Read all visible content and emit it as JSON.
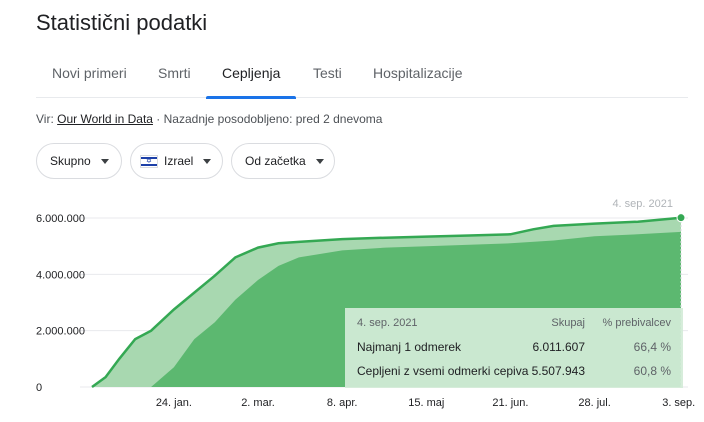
{
  "title": "Statistični podatki",
  "tabs": [
    {
      "label": "Novi primeri"
    },
    {
      "label": "Smrti"
    },
    {
      "label": "Cepljenja"
    },
    {
      "label": "Testi"
    },
    {
      "label": "Hospitalizacije"
    }
  ],
  "active_tab": "Cepljenja",
  "source": {
    "prefix": "Vir:",
    "link": "Our World in Data",
    "separator": "·",
    "updated": "Nazadnje posodobljeno: pred 2 dnevoma"
  },
  "filters": {
    "metric": "Skupno",
    "country": "Izrael",
    "range": "Od začetka"
  },
  "colors": {
    "at_least_one": "#a8d8b0",
    "fully": "#5cb870",
    "line": "#34a853",
    "accent": "#1a73e8"
  },
  "icons": {
    "country_flag": "israel-flag-icon",
    "dropdown": "caret-down-icon"
  },
  "tooltip": {
    "date": "4. sep. 2021",
    "col_total": "Skupaj",
    "col_percent": "% prebivalcev",
    "rows": [
      {
        "label": "Najmanj 1 odmerek",
        "total": "6.011.607",
        "percent": "66,4 %"
      },
      {
        "label": "Cepljeni z vsemi odmerki cepiva",
        "total": "5.507.943",
        "percent": "60,8 %"
      }
    ]
  },
  "chart_data": {
    "type": "area",
    "title": "",
    "xlabel": "",
    "ylabel": "",
    "ylim": [
      0,
      6000000
    ],
    "yticks": [
      0,
      2000000,
      4000000,
      6000000
    ],
    "ytick_labels": [
      "0",
      "2.000.000",
      "4.000.000",
      "6.000.000"
    ],
    "xtick_labels": [
      "24. jan.",
      "2. mar.",
      "8. apr.",
      "15. maj",
      "21. jun.",
      "28. jul.",
      "3. sep."
    ],
    "grid": true,
    "highlight_label": "4. sep. 2021",
    "series": [
      {
        "name": "Najmanj 1 odmerek",
        "x": [
          "2020-12-19",
          "2020-12-25",
          "2020-12-31",
          "2021-01-07",
          "2021-01-14",
          "2021-01-24",
          "2021-02-02",
          "2021-02-11",
          "2021-02-20",
          "2021-03-02",
          "2021-03-11",
          "2021-03-20",
          "2021-04-08",
          "2021-04-27",
          "2021-05-15",
          "2021-06-03",
          "2021-06-21",
          "2021-07-01",
          "2021-07-10",
          "2021-07-28",
          "2021-08-16",
          "2021-09-04"
        ],
        "values": [
          0,
          350000,
          1000000,
          1700000,
          2000000,
          2750000,
          3350000,
          3950000,
          4600000,
          4950000,
          5100000,
          5150000,
          5250000,
          5300000,
          5340000,
          5380000,
          5420000,
          5600000,
          5720000,
          5800000,
          5870000,
          6011607
        ]
      },
      {
        "name": "Cepljeni z vsemi odmerki cepiva",
        "x": [
          "2020-12-19",
          "2021-01-07",
          "2021-01-14",
          "2021-01-24",
          "2021-02-02",
          "2021-02-11",
          "2021-02-20",
          "2021-03-02",
          "2021-03-11",
          "2021-03-20",
          "2021-04-08",
          "2021-04-27",
          "2021-05-15",
          "2021-06-03",
          "2021-06-21",
          "2021-07-10",
          "2021-07-28",
          "2021-08-16",
          "2021-09-04"
        ],
        "values": [
          0,
          0,
          0,
          700000,
          1700000,
          2300000,
          3100000,
          3800000,
          4300000,
          4600000,
          4850000,
          4950000,
          5000000,
          5050000,
          5100000,
          5200000,
          5350000,
          5420000,
          5507943
        ]
      }
    ]
  }
}
